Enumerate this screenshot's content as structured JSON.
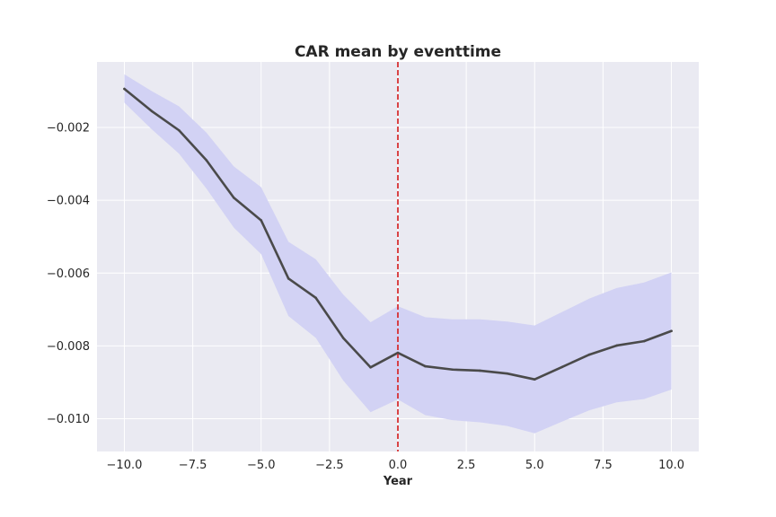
{
  "chart_data": {
    "type": "line",
    "title": "CAR mean by eventtime",
    "xlabel": "Year",
    "ylabel": "",
    "xlim": [
      -11,
      11
    ],
    "ylim": [
      -0.0109,
      -0.0002
    ],
    "x_ticks": [
      -10,
      -7.5,
      -5,
      -2.5,
      0,
      2.5,
      5,
      7.5,
      10
    ],
    "x_tick_labels": [
      "−10.0",
      "−7.5",
      "−5.0",
      "−2.5",
      "0.0",
      "2.5",
      "5.0",
      "7.5",
      "10.0"
    ],
    "y_ticks": [
      -0.002,
      -0.004,
      -0.006,
      -0.008,
      -0.01
    ],
    "y_tick_labels": [
      "−0.002",
      "−0.004",
      "−0.006",
      "−0.008",
      "−0.010"
    ],
    "grid": true,
    "colors": {
      "line": "#4a4a4a",
      "band": "#d2d2f4",
      "vline": "#d62728",
      "plot_bg": "#eaeaf2",
      "grid": "#ffffff"
    },
    "vline_x": 0,
    "x": [
      -10,
      -9,
      -8,
      -7,
      -6,
      -5,
      -4,
      -3,
      -2,
      -1,
      0,
      1,
      2,
      3,
      4,
      5,
      6,
      7,
      8,
      9,
      10
    ],
    "series": [
      {
        "values": [
          -0.00094,
          -0.00155,
          -0.00208,
          -0.0029,
          -0.00393,
          -0.00455,
          -0.00615,
          -0.00668,
          -0.00778,
          -0.00859,
          -0.00819,
          -0.00856,
          -0.00865,
          -0.00868,
          -0.00876,
          -0.00892,
          -0.00858,
          -0.00824,
          -0.00799,
          -0.00787,
          -0.00759
        ],
        "lower": [
          -0.00132,
          -0.00205,
          -0.00272,
          -0.00368,
          -0.00475,
          -0.00548,
          -0.00718,
          -0.00778,
          -0.00895,
          -0.00982,
          -0.00947,
          -0.0099,
          -0.01004,
          -0.0101,
          -0.0102,
          -0.0104,
          -0.01008,
          -0.00977,
          -0.00955,
          -0.00946,
          -0.0092
        ],
        "upper": [
          -0.00054,
          -0.001,
          -0.00142,
          -0.00214,
          -0.00307,
          -0.00364,
          -0.00514,
          -0.00562,
          -0.00659,
          -0.00735,
          -0.00691,
          -0.00721,
          -0.00727,
          -0.00727,
          -0.00733,
          -0.00744,
          -0.00707,
          -0.0067,
          -0.00641,
          -0.00626,
          -0.00598
        ]
      }
    ]
  }
}
